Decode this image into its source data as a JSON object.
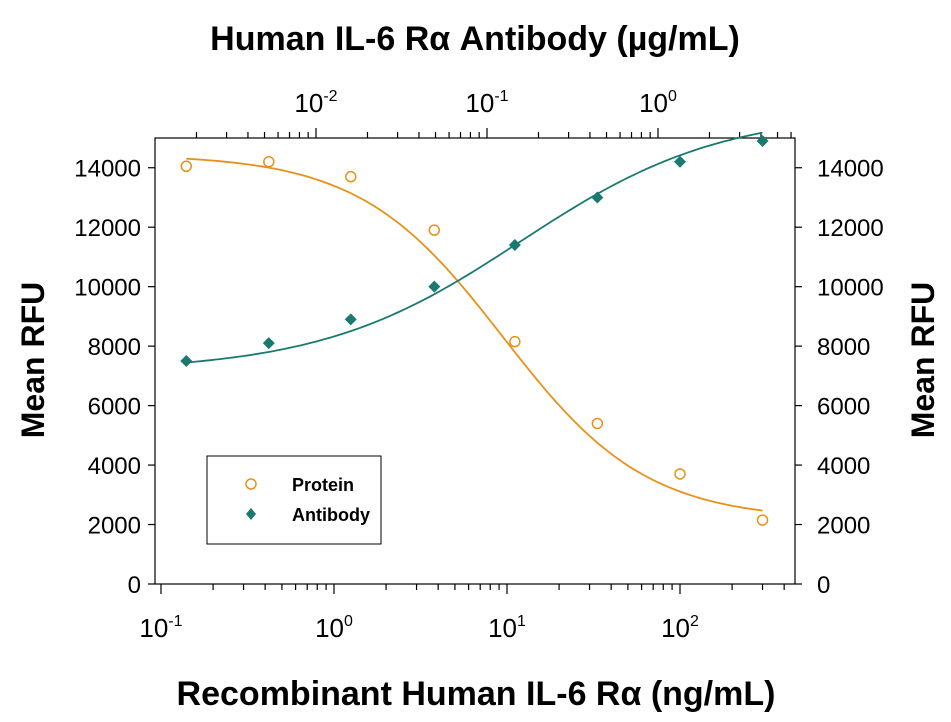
{
  "chart_data": {
    "type": "scatter",
    "title_top": "Human IL-6 Rα Antibody (µg/mL)",
    "xlabel": "Recombinant Human IL-6 Rα (ng/mL)",
    "ylabel_left": "Mean RFU",
    "ylabel_right": "Mean RFU",
    "x_scale": "log",
    "x_top_scale": "log",
    "ylim": [
      0,
      15000
    ],
    "yticks": [
      0,
      2000,
      4000,
      6000,
      8000,
      10000,
      12000,
      14000
    ],
    "ytick_labels": [
      "0",
      "2000",
      "4000",
      "6000",
      "8000",
      "10000",
      "12000",
      "14000"
    ],
    "x_bottom_ticks": [
      {
        "base": "10",
        "exp": "-1"
      },
      {
        "base": "10",
        "exp": "0"
      },
      {
        "base": "10",
        "exp": "1"
      },
      {
        "base": "10",
        "exp": "2"
      }
    ],
    "x_top_ticks": [
      {
        "base": "10",
        "exp": "-2"
      },
      {
        "base": "10",
        "exp": "-1"
      },
      {
        "base": "10",
        "exp": "0"
      }
    ],
    "legend": {
      "position": "lower-left"
    },
    "series": [
      {
        "name": "Protein",
        "color": "#E8911A",
        "marker": "open-circle",
        "x": [
          0.14,
          0.42,
          1.25,
          3.8,
          11.1,
          33.3,
          100,
          300
        ],
        "y": [
          14050,
          14200,
          13700,
          11900,
          8150,
          5400,
          3700,
          2150
        ]
      },
      {
        "name": "Antibody",
        "color": "#1A7A72",
        "marker": "diamond",
        "x": [
          0.14,
          0.42,
          1.25,
          3.8,
          11.1,
          33.3,
          100,
          300
        ],
        "y": [
          7500,
          8100,
          8900,
          10000,
          11400,
          13000,
          14200,
          14900
        ]
      }
    ]
  }
}
